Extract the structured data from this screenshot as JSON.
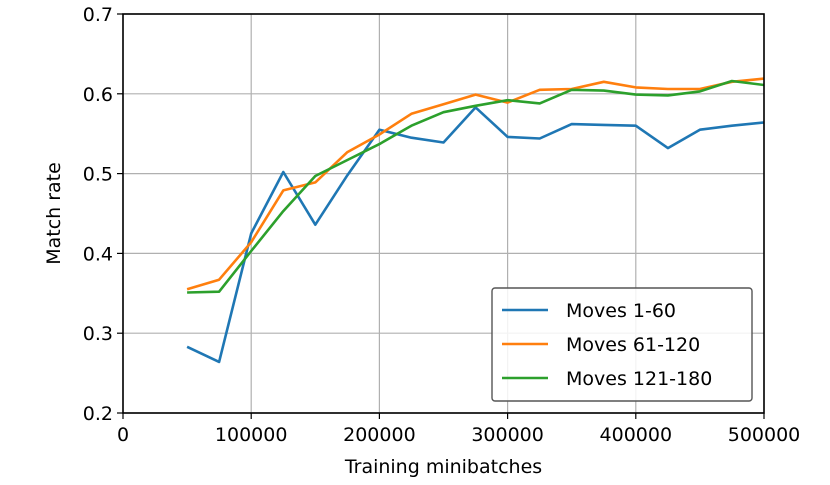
{
  "chart_data": {
    "type": "line",
    "title": "",
    "xlabel": "Training minibatches",
    "ylabel": "Match rate",
    "xlim": [
      0,
      500000
    ],
    "ylim": [
      0.2,
      0.7
    ],
    "grid": true,
    "legend_position": "lower-right",
    "x_ticks": [
      {
        "value": 0,
        "label": "0"
      },
      {
        "value": 100000,
        "label": "100000"
      },
      {
        "value": 200000,
        "label": "200000"
      },
      {
        "value": 300000,
        "label": "300000"
      },
      {
        "value": 400000,
        "label": "400000"
      },
      {
        "value": 500000,
        "label": "500000"
      }
    ],
    "y_ticks": [
      {
        "value": 0.2,
        "label": "0.2"
      },
      {
        "value": 0.3,
        "label": "0.3"
      },
      {
        "value": 0.4,
        "label": "0.4"
      },
      {
        "value": 0.5,
        "label": "0.5"
      },
      {
        "value": 0.6,
        "label": "0.6"
      },
      {
        "value": 0.7,
        "label": "0.7"
      }
    ],
    "x": [
      50000,
      75000,
      100000,
      125000,
      150000,
      175000,
      200000,
      225000,
      250000,
      275000,
      300000,
      325000,
      350000,
      375000,
      400000,
      425000,
      450000,
      475000,
      500000
    ],
    "series": [
      {
        "name": "Moves 1-60",
        "color": "#1f77b4",
        "values": [
          0.283,
          0.264,
          0.425,
          0.502,
          0.436,
          0.498,
          0.555,
          0.545,
          0.539,
          0.583,
          0.546,
          0.544,
          0.562,
          0.561,
          0.56,
          0.532,
          0.555,
          0.56,
          0.564
        ]
      },
      {
        "name": "Moves 61-120",
        "color": "#ff7f0e",
        "values": [
          0.355,
          0.367,
          0.414,
          0.479,
          0.489,
          0.527,
          0.549,
          0.575,
          0.587,
          0.599,
          0.589,
          0.605,
          0.606,
          0.615,
          0.608,
          0.606,
          0.606,
          0.615,
          0.619
        ]
      },
      {
        "name": "Moves 121-180",
        "color": "#2ca02c",
        "values": [
          0.351,
          0.352,
          0.403,
          0.453,
          0.497,
          0.517,
          0.537,
          0.56,
          0.577,
          0.585,
          0.592,
          0.588,
          0.605,
          0.604,
          0.599,
          0.598,
          0.603,
          0.616,
          0.611
        ]
      }
    ]
  }
}
